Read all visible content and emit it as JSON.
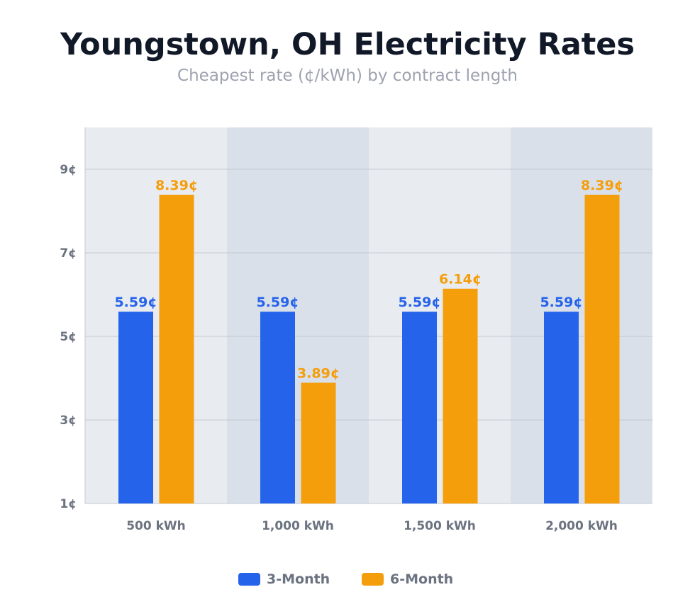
{
  "chart_data": {
    "type": "bar",
    "title": "Youngstown, OH Electricity Rates",
    "subtitle": "Cheapest rate (¢/kWh) by contract length",
    "xlabel": "",
    "ylabel": "",
    "categories": [
      "500 kWh",
      "1,000 kWh",
      "1,500 kWh",
      "2,000 kWh"
    ],
    "series": [
      {
        "name": "3-Month",
        "color": "#2563eb",
        "values": [
          5.59,
          5.59,
          5.59,
          5.59
        ],
        "labels": [
          "5.59¢",
          "5.59¢",
          "5.59¢",
          "5.59¢"
        ]
      },
      {
        "name": "6-Month",
        "color": "#f59e0b",
        "values": [
          8.39,
          3.89,
          6.14,
          8.39
        ],
        "labels": [
          "8.39¢",
          "3.89¢",
          "6.14¢",
          "8.39¢"
        ]
      }
    ],
    "ylim": [
      1,
      10
    ],
    "yticks": [
      1,
      3,
      5,
      7,
      9
    ],
    "ytick_labels": [
      "1¢",
      "3¢",
      "5¢",
      "7¢",
      "9¢"
    ],
    "grid": true,
    "legend": "bottom-center"
  }
}
